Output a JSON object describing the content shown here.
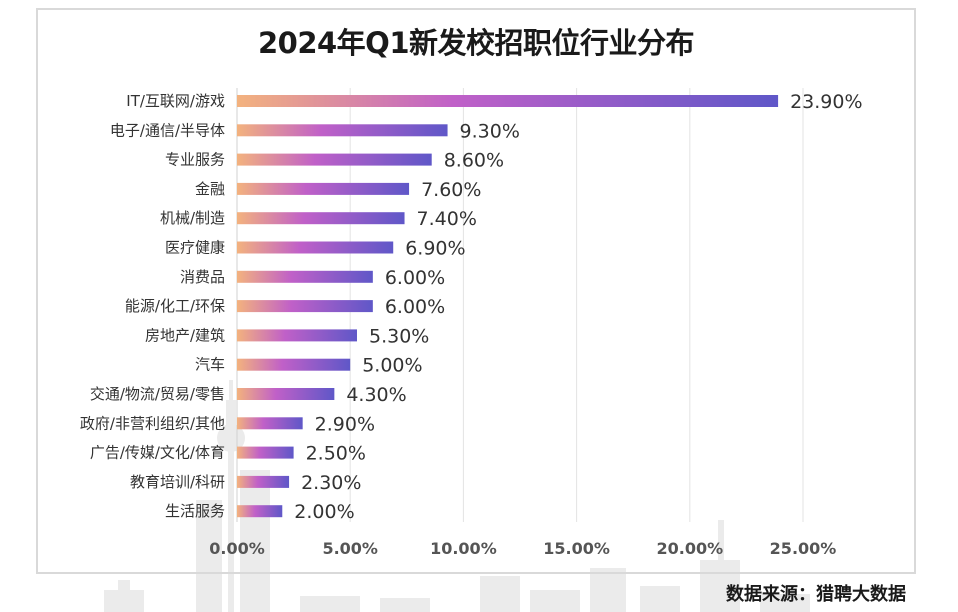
{
  "chart_data": {
    "type": "bar",
    "orientation": "horizontal",
    "title": "2024年Q1新发校招职位行业分布",
    "categories": [
      "IT/互联网/游戏",
      "电子/通信/半导体",
      "专业服务",
      "金融",
      "机械/制造",
      "医疗健康",
      "消费品",
      "能源/化工/环保",
      "房地产/建筑",
      "汽车",
      "交通/物流/贸易/零售",
      "政府/非营利组织/其他",
      "广告/传媒/文化/体育",
      "教育培训/科研",
      "生活服务"
    ],
    "values": [
      23.9,
      9.3,
      8.6,
      7.6,
      7.4,
      6.9,
      6.0,
      6.0,
      5.3,
      5.0,
      4.3,
      2.9,
      2.5,
      2.3,
      2.0
    ],
    "value_labels": [
      "23.90%",
      "9.30%",
      "8.60%",
      "7.60%",
      "7.40%",
      "6.90%",
      "6.00%",
      "6.00%",
      "5.30%",
      "5.00%",
      "4.30%",
      "2.90%",
      "2.50%",
      "2.30%",
      "2.00%"
    ],
    "xlim": [
      0,
      25
    ],
    "x_ticks": [
      "0.00%",
      "5.00%",
      "10.00%",
      "15.00%",
      "20.00%",
      "25.00%"
    ],
    "grid": true,
    "bar_gradient": [
      "#f3b27e",
      "#c060c8",
      "#5f57c8"
    ]
  },
  "source_note": "数据来源：猎聘大数据"
}
